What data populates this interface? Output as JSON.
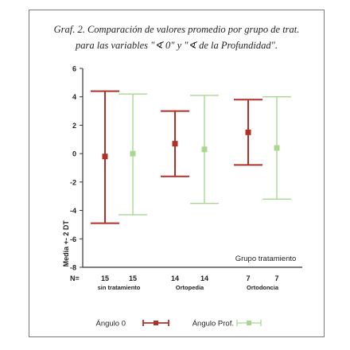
{
  "caption": {
    "line1": "Graf. 2. Comparación de valores promedio por grupo de trat.",
    "line2": "para las variables \"∢ 0\" y \"∢ de la Profundidad\"."
  },
  "colors": {
    "angulo0": "#b03028",
    "prof": "#a8d890",
    "axis": "#333333"
  },
  "chart_data": {
    "type": "error-bar",
    "ylabel": "Media +- 2 DT",
    "ylim": [
      -8,
      6
    ],
    "yticks": [
      "6",
      "4",
      "2",
      "0",
      "-2",
      "-4",
      "-6",
      "-8"
    ],
    "ytick_values": [
      6,
      4,
      2,
      0,
      -2,
      -4,
      -6,
      -8
    ],
    "n_label": "N=",
    "xgroup_title": "Grupo tratamiento",
    "groups": [
      {
        "label": "sin tratamiento",
        "n": [
          "15",
          "15"
        ]
      },
      {
        "label": "Ortopedia",
        "n": [
          "14",
          "14"
        ]
      },
      {
        "label": "Ortodoncia",
        "n": [
          "7",
          "7"
        ]
      }
    ],
    "series": [
      {
        "name": "Ángulo 0",
        "mean": [
          -0.2,
          0.7,
          1.5
        ],
        "lower": [
          -4.9,
          -1.6,
          -0.8
        ],
        "upper": [
          4.4,
          3.0,
          3.8
        ]
      },
      {
        "name": "Ángulo Prof.",
        "mean": [
          0.0,
          0.3,
          0.4
        ],
        "lower": [
          -4.3,
          -3.5,
          -3.2
        ],
        "upper": [
          4.2,
          4.1,
          4.0
        ]
      }
    ]
  }
}
